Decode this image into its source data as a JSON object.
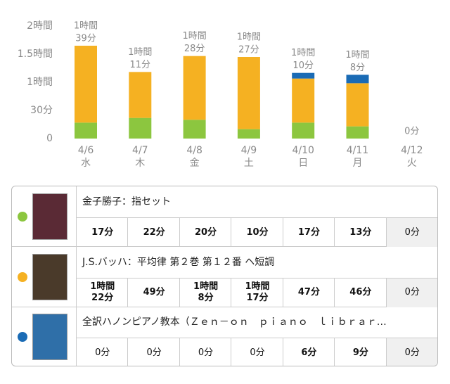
{
  "chart_data": {
    "type": "stacked_bar",
    "categories": [
      "4/6",
      "4/7",
      "4/8",
      "4/9",
      "4/10",
      "4/11",
      "4/12"
    ],
    "weekdays": [
      "水",
      "木",
      "金",
      "土",
      "日",
      "月",
      "火"
    ],
    "ylim": [
      0,
      120
    ],
    "yticks": [
      0,
      {
        "value": 30,
        "label": "30分"
      },
      {
        "value": 60,
        "label": "1時間"
      },
      {
        "value": 90,
        "label": "1.5時間"
      },
      {
        "value": 120,
        "label": "2時間"
      }
    ],
    "grid": false,
    "series": [
      {
        "name": "金子勝子：指セット",
        "color": "#8cc63f",
        "values": [
          17,
          22,
          20,
          10,
          17,
          13,
          0
        ],
        "value_labels": [
          [
            "17分"
          ],
          [
            "22分"
          ],
          [
            "20分"
          ],
          [
            "10分"
          ],
          [
            "17分"
          ],
          [
            "13分"
          ],
          [
            "0分"
          ]
        ]
      },
      {
        "name": "J.S.バッハ：平均律 第２巻 第１２番 ヘ短調",
        "color": "#f5b122",
        "values": [
          82,
          49,
          68,
          77,
          47,
          46,
          0
        ],
        "value_labels": [
          [
            "1時間",
            "22分"
          ],
          [
            "49分"
          ],
          [
            "1時間",
            "8分"
          ],
          [
            "1時間",
            "17分"
          ],
          [
            "47分"
          ],
          [
            "46分"
          ],
          [
            "0分"
          ]
        ]
      },
      {
        "name": "全訳ハノンピアノ教本（Ｚｅｎ－ｏｎ　ｐｉａｎｏ　ｌｉｂｒａｒ…",
        "color": "#1a6bb5",
        "values": [
          0,
          0,
          0,
          0,
          6,
          9,
          0
        ],
        "value_labels": [
          [
            "0分"
          ],
          [
            "0分"
          ],
          [
            "0分"
          ],
          [
            "0分"
          ],
          [
            "6分"
          ],
          [
            "9分"
          ],
          [
            "0分"
          ]
        ]
      }
    ],
    "totals": [
      99,
      71,
      88,
      87,
      70,
      68,
      0
    ],
    "total_labels": [
      [
        "1時間",
        "39分"
      ],
      [
        "1時間",
        "11分"
      ],
      [
        "1時間",
        "28分"
      ],
      [
        "1時間",
        "27分"
      ],
      [
        "1時間",
        "10分"
      ],
      [
        "1時間",
        "8分"
      ],
      [
        "0分"
      ]
    ]
  }
}
